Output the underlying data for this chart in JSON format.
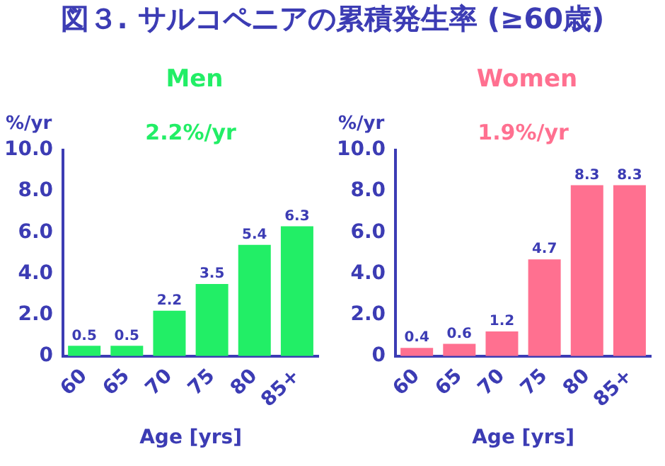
{
  "chart_data": [
    {
      "type": "bar",
      "title": "図３. サルコペニアの累積発生率 (≥60歳)",
      "subtitle": "Men",
      "xlabel": "Age [yrs]",
      "ylabel": "%/yr",
      "annotations": [
        "2.2%/yr"
      ],
      "categories": [
        "60",
        "65",
        "70",
        "75",
        "80",
        "85+"
      ],
      "series": [
        {
          "color": "#22ee66",
          "values": [
            0.5,
            0.5,
            2.2,
            3.5,
            5.4,
            6.3
          ]
        }
      ],
      "ylim": [
        0,
        10
      ],
      "yticks": [
        {
          "value": 0,
          "label": "0"
        },
        {
          "value": 2,
          "label": "2.0"
        },
        {
          "value": 4,
          "label": "4.0"
        },
        {
          "value": 6,
          "label": "6.0"
        },
        {
          "value": 8,
          "label": "8.0"
        },
        {
          "value": 10,
          "label": "10.0"
        }
      ],
      "data_labels": true
    },
    {
      "type": "bar",
      "subtitle": "Women",
      "xlabel": "Age [yrs]",
      "ylabel": "%/yr",
      "annotations": [
        "1.9%/yr"
      ],
      "categories": [
        "60",
        "65",
        "70",
        "75",
        "80",
        "85+"
      ],
      "series": [
        {
          "color": "#ff7090",
          "values": [
            0.4,
            0.6,
            1.2,
            4.7,
            8.3,
            8.3
          ]
        }
      ],
      "ylim": [
        0,
        10
      ],
      "yticks": [
        {
          "value": 0,
          "label": "0"
        },
        {
          "value": 2,
          "label": "2.0"
        },
        {
          "value": 4,
          "label": "4.0"
        },
        {
          "value": 6,
          "label": "6.0"
        },
        {
          "value": 8,
          "label": "8.0"
        },
        {
          "value": 10,
          "label": "10.0"
        }
      ],
      "data_labels": true
    }
  ]
}
